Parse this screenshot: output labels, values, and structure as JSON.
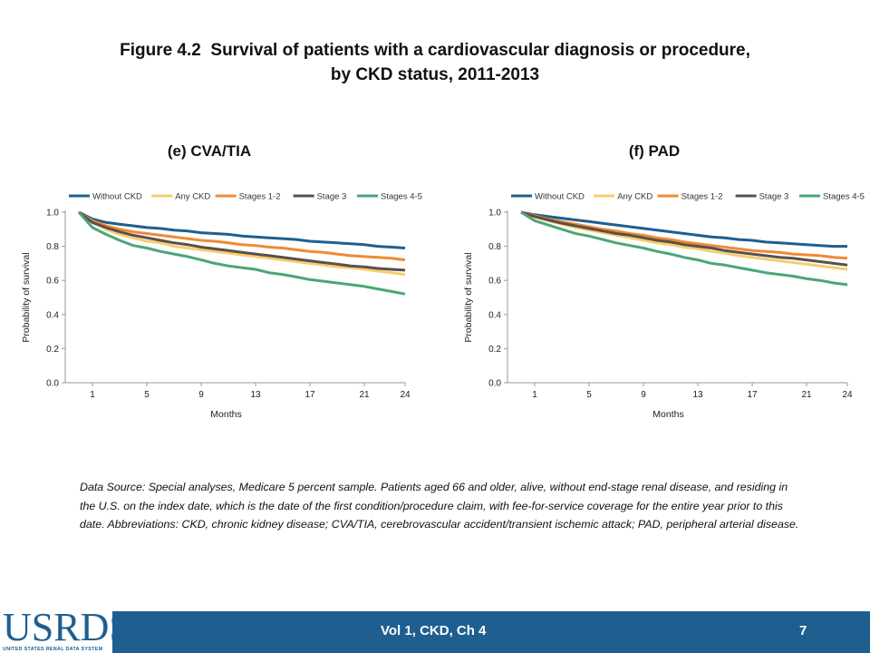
{
  "title": {
    "line1": "Figure 4.2  Survival of patients with a cardiovascular diagnosis or procedure,",
    "line2": "by CKD status, 2011-2013"
  },
  "colors": {
    "Without CKD": "#1e5f8e",
    "Any CKD": "#f5cf6f",
    "Stages 1-2": "#ef8a34",
    "Stage 3": "#5b4f4a",
    "Stages 4-5": "#4aa678",
    "footer": "#1f5f8f"
  },
  "chart_data": [
    {
      "type": "line",
      "title": "(e) CVA/TIA",
      "xlabel": "Months",
      "ylabel": "Probability of survival",
      "x_ticks": [
        1,
        5,
        9,
        13,
        17,
        21,
        24
      ],
      "y_ticks": [
        "0.0",
        "0.2",
        "0.4",
        "0.6",
        "0.8",
        "1.0"
      ],
      "xlim": [
        -1,
        24
      ],
      "ylim": [
        0,
        1.0
      ],
      "grid": false,
      "legend_position": "top",
      "x": [
        0,
        1,
        2,
        3,
        4,
        5,
        6,
        7,
        8,
        9,
        10,
        11,
        12,
        13,
        14,
        15,
        16,
        17,
        18,
        19,
        20,
        21,
        22,
        23,
        24
      ],
      "series": [
        {
          "name": "Without CKD",
          "values": [
            1.0,
            0.96,
            0.94,
            0.93,
            0.92,
            0.91,
            0.905,
            0.895,
            0.89,
            0.88,
            0.875,
            0.87,
            0.86,
            0.855,
            0.85,
            0.845,
            0.84,
            0.83,
            0.825,
            0.82,
            0.815,
            0.81,
            0.8,
            0.795,
            0.79
          ]
        },
        {
          "name": "Any CKD",
          "values": [
            1.0,
            0.94,
            0.9,
            0.87,
            0.85,
            0.83,
            0.82,
            0.8,
            0.79,
            0.78,
            0.77,
            0.76,
            0.75,
            0.74,
            0.73,
            0.72,
            0.71,
            0.7,
            0.69,
            0.68,
            0.675,
            0.665,
            0.655,
            0.645,
            0.635
          ]
        },
        {
          "name": "Stages 1-2",
          "values": [
            1.0,
            0.95,
            0.92,
            0.9,
            0.885,
            0.875,
            0.865,
            0.855,
            0.845,
            0.835,
            0.83,
            0.82,
            0.81,
            0.805,
            0.795,
            0.79,
            0.78,
            0.77,
            0.765,
            0.755,
            0.745,
            0.74,
            0.735,
            0.73,
            0.72
          ]
        },
        {
          "name": "Stage 3",
          "values": [
            1.0,
            0.94,
            0.91,
            0.885,
            0.865,
            0.85,
            0.835,
            0.82,
            0.81,
            0.795,
            0.785,
            0.775,
            0.765,
            0.755,
            0.745,
            0.735,
            0.725,
            0.715,
            0.705,
            0.695,
            0.685,
            0.68,
            0.67,
            0.665,
            0.66
          ]
        },
        {
          "name": "Stages 4-5",
          "values": [
            1.0,
            0.91,
            0.87,
            0.835,
            0.805,
            0.79,
            0.77,
            0.755,
            0.74,
            0.72,
            0.7,
            0.685,
            0.675,
            0.665,
            0.645,
            0.635,
            0.62,
            0.605,
            0.595,
            0.585,
            0.575,
            0.565,
            0.55,
            0.535,
            0.52
          ]
        }
      ]
    },
    {
      "type": "line",
      "title": "(f) PAD",
      "xlabel": "Months",
      "ylabel": "Probability of survival",
      "x_ticks": [
        1,
        5,
        9,
        13,
        17,
        21,
        24
      ],
      "y_ticks": [
        "0.0",
        "0.2",
        "0.4",
        "0.6",
        "0.8",
        "1.0"
      ],
      "xlim": [
        -1,
        24
      ],
      "ylim": [
        0,
        1.0
      ],
      "grid": false,
      "legend_position": "top",
      "x": [
        0,
        1,
        2,
        3,
        4,
        5,
        6,
        7,
        8,
        9,
        10,
        11,
        12,
        13,
        14,
        15,
        16,
        17,
        18,
        19,
        20,
        21,
        22,
        23,
        24
      ],
      "series": [
        {
          "name": "Without CKD",
          "values": [
            1.0,
            0.985,
            0.975,
            0.965,
            0.955,
            0.945,
            0.935,
            0.925,
            0.915,
            0.905,
            0.895,
            0.885,
            0.875,
            0.865,
            0.855,
            0.85,
            0.84,
            0.835,
            0.825,
            0.82,
            0.815,
            0.81,
            0.805,
            0.8,
            0.8
          ]
        },
        {
          "name": "Any CKD",
          "values": [
            1.0,
            0.97,
            0.95,
            0.93,
            0.91,
            0.895,
            0.88,
            0.865,
            0.85,
            0.835,
            0.82,
            0.81,
            0.795,
            0.785,
            0.77,
            0.76,
            0.745,
            0.735,
            0.725,
            0.715,
            0.705,
            0.695,
            0.685,
            0.675,
            0.665
          ]
        },
        {
          "name": "Stages 1-2",
          "values": [
            1.0,
            0.98,
            0.96,
            0.945,
            0.93,
            0.915,
            0.9,
            0.89,
            0.875,
            0.865,
            0.85,
            0.84,
            0.825,
            0.815,
            0.805,
            0.795,
            0.785,
            0.775,
            0.77,
            0.765,
            0.755,
            0.75,
            0.745,
            0.735,
            0.73
          ]
        },
        {
          "name": "Stage 3",
          "values": [
            1.0,
            0.975,
            0.955,
            0.935,
            0.92,
            0.905,
            0.89,
            0.875,
            0.865,
            0.85,
            0.835,
            0.825,
            0.81,
            0.8,
            0.79,
            0.775,
            0.765,
            0.755,
            0.745,
            0.735,
            0.73,
            0.72,
            0.71,
            0.7,
            0.69
          ]
        },
        {
          "name": "Stages 4-5",
          "values": [
            1.0,
            0.95,
            0.925,
            0.9,
            0.875,
            0.86,
            0.84,
            0.82,
            0.805,
            0.79,
            0.77,
            0.755,
            0.735,
            0.72,
            0.7,
            0.69,
            0.675,
            0.66,
            0.645,
            0.635,
            0.625,
            0.61,
            0.6,
            0.585,
            0.575
          ]
        }
      ]
    }
  ],
  "source_note": "Data Source: Special analyses, Medicare 5 percent sample. Patients aged 66 and older, alive, without end-stage renal disease, and residing in the U.S. on the index date, which is the date of the first condition/procedure claim, with fee-for-service coverage for the entire year prior to this date. Abbreviations: CKD, chronic kidney disease; CVA/TIA, cerebrovascular accident/transient ischemic attack; PAD, peripheral arterial disease.",
  "footer": {
    "text": "Vol 1, CKD, Ch 4",
    "page": "7"
  },
  "logo": {
    "main": "USRDS",
    "sub": "UNITED STATES RENAL DATA SYSTEM"
  }
}
